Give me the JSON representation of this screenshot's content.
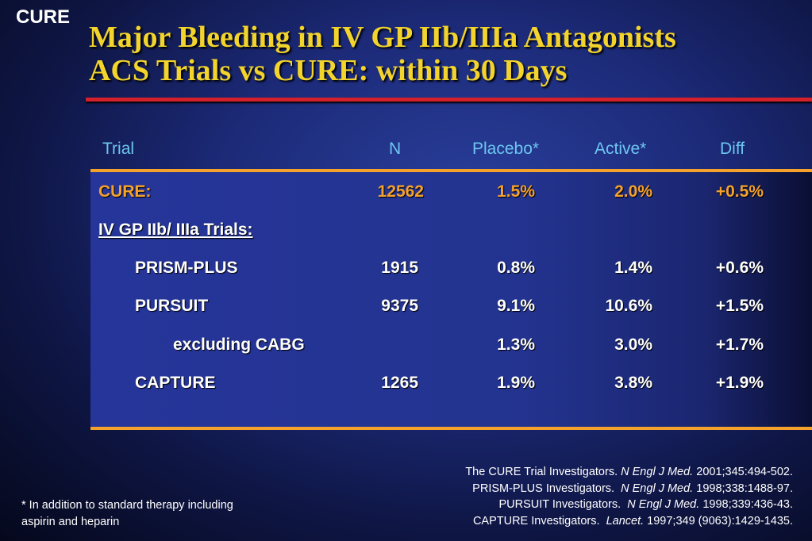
{
  "corner_label": "CURE",
  "title": {
    "line1": "Major Bleeding in IV GP IIb/IIIa Antagonists",
    "line2": "ACS Trials vs CURE: within 30 Days"
  },
  "table": {
    "headers": {
      "trial": "Trial",
      "n": "N",
      "placebo": "Placebo*",
      "active": "Active*",
      "diff": "Diff"
    },
    "rows": [
      {
        "trial": "CURE:",
        "n": "12562",
        "placebo": "1.5%",
        "active": "2.0%",
        "diff": "+0.5%"
      },
      {
        "trial": "IV GP IIb/ IIIa Trials:",
        "n": "",
        "placebo": "",
        "active": "",
        "diff": ""
      },
      {
        "trial": "PRISM-PLUS",
        "n": "1915",
        "placebo": "0.8%",
        "active": "1.4%",
        "diff": "+0.6%"
      },
      {
        "trial": "PURSUIT",
        "n": "9375",
        "placebo": "9.1%",
        "active": "10.6%",
        "diff": "+1.5%"
      },
      {
        "trial": "excluding CABG",
        "n": "",
        "placebo": "1.3%",
        "active": "3.0%",
        "diff": "+1.7%"
      },
      {
        "trial": "CAPTURE",
        "n": "1265",
        "placebo": "1.9%",
        "active": "3.8%",
        "diff": "+1.9%"
      }
    ]
  },
  "references": [
    {
      "authors": "The CURE Trial Investigators.",
      "journal": "N Engl J Med.",
      "cite": "2001;345:494-502."
    },
    {
      "authors": "PRISM-PLUS Investigators.",
      "journal": "N Engl J Med.",
      "cite": "1998;338:1488-97."
    },
    {
      "authors": "PURSUIT Investigators.",
      "journal": "N Engl J Med.",
      "cite": "1998;339:436-43."
    },
    {
      "authors": "CAPTURE Investigators.",
      "journal": "Lancet.",
      "cite": "1997;349 (9063):1429-1435."
    }
  ],
  "footnote": {
    "line1": "* In addition to standard therapy including",
    "line2": "aspirin and heparin"
  }
}
